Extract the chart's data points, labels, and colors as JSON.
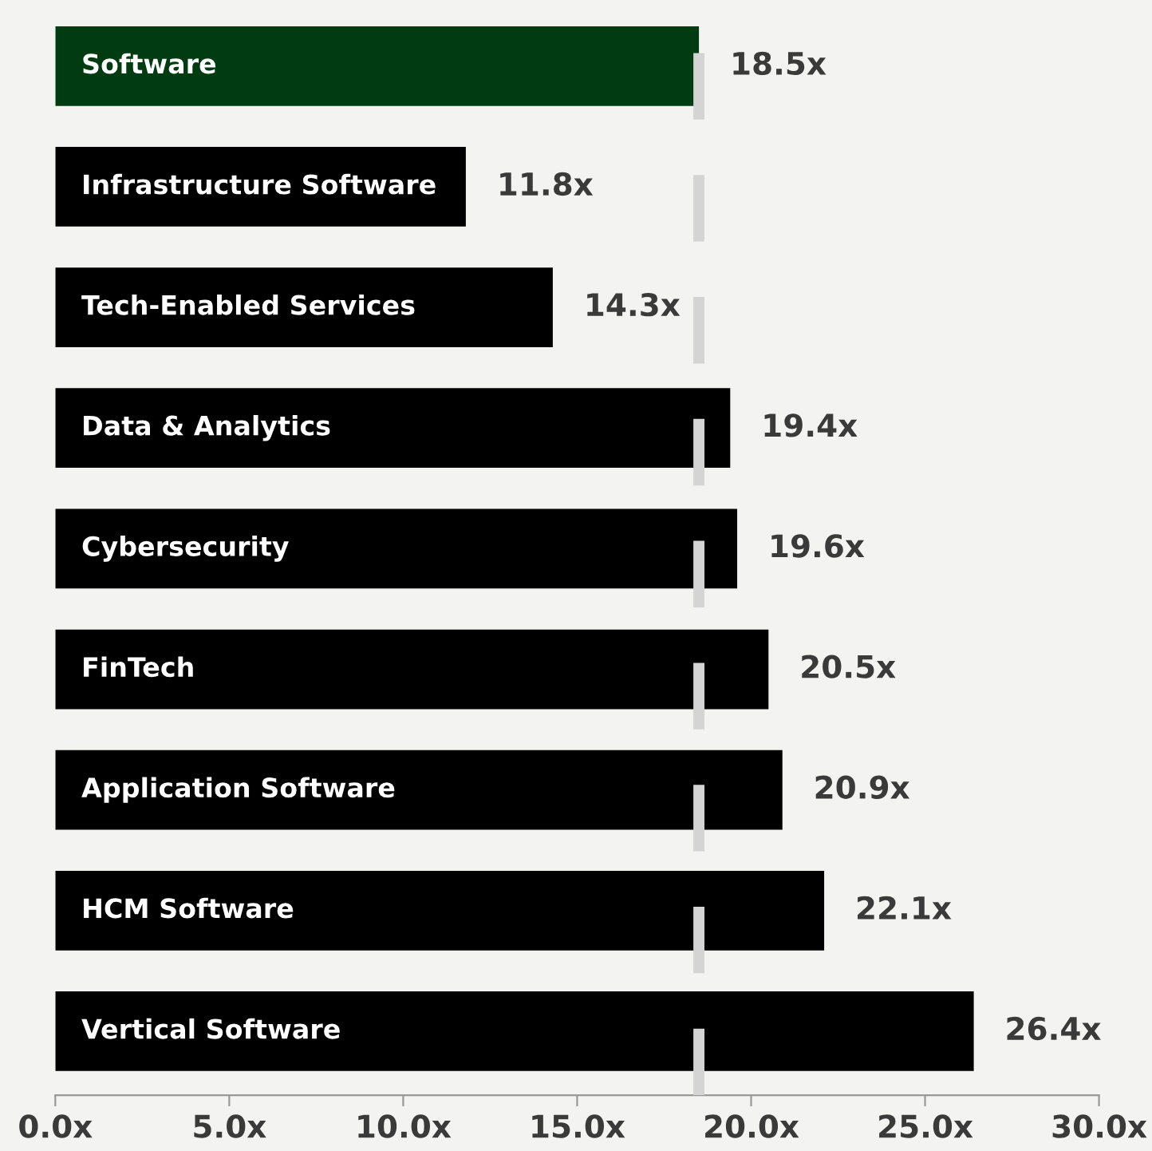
{
  "chart_data": {
    "type": "bar",
    "orientation": "horizontal",
    "categories": [
      "Software",
      "Infrastructure Software",
      "Tech-Enabled Services",
      "Data & Analytics",
      "Cybersecurity",
      "FinTech",
      "Application Software",
      "HCM Software",
      "Vertical Software"
    ],
    "values": [
      18.5,
      11.8,
      14.3,
      19.4,
      19.6,
      20.5,
      20.9,
      22.1,
      26.4
    ],
    "colors": [
      "#003b12",
      "#000000",
      "#000000",
      "#000000",
      "#000000",
      "#000000",
      "#000000",
      "#000000",
      "#000000"
    ],
    "value_labels": [
      "18.5x",
      "11.8x",
      "14.3x",
      "19.4x",
      "19.6x",
      "20.5x",
      "20.9x",
      "22.1x",
      "26.4x"
    ],
    "xlim": [
      0,
      30
    ],
    "xticks": [
      {
        "value": 0,
        "label": "0.0x"
      },
      {
        "value": 5,
        "label": "5.0x"
      },
      {
        "value": 10,
        "label": "10.0x"
      },
      {
        "value": 15,
        "label": "15.0x"
      },
      {
        "value": 20,
        "label": "20.0x"
      },
      {
        "value": 25,
        "label": "25.0x"
      },
      {
        "value": 30,
        "label": "30.0x"
      }
    ],
    "ref_lines": [
      {
        "axis": "x",
        "value": 18.5,
        "color": "#d4d4d4",
        "line_style": "dashed"
      }
    ],
    "grid": false,
    "legend": false
  }
}
